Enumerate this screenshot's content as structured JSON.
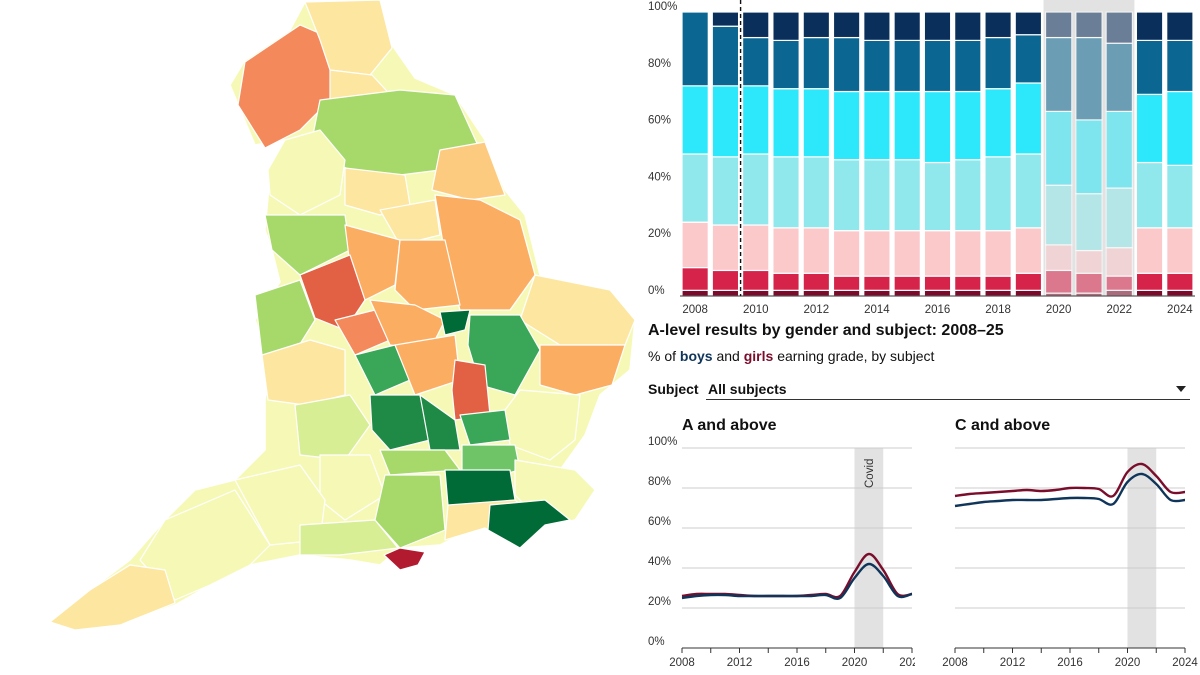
{
  "colors": {
    "boys": "#10355a",
    "girls": "#7a0d2c",
    "covid_shade": "#e2e2e2",
    "grid": "#cccccc",
    "grade_segments_bottom_to_top": [
      "#7d0a2a",
      "#d6234a",
      "#fcc9cb",
      "#90e8ec",
      "#2de8fb",
      "#0b6691",
      "#092f5a"
    ]
  },
  "map": {
    "scale": "green-yellow-red",
    "colors": [
      "#006b36",
      "#1e8a45",
      "#3aa657",
      "#6ec466",
      "#a6d96a",
      "#d8ee95",
      "#f6f9b6",
      "#fde6a0",
      "#fdcb80",
      "#fbad62",
      "#f4895c",
      "#e26043",
      "#b21a30"
    ]
  },
  "text": {
    "title": "A-level results by gender and subject: 2008–25",
    "subtitle_prefix": "% of ",
    "boys": "boys",
    "and": " and ",
    "girls": "girls",
    "subtitle_suffix": " earning grade, by subject",
    "subject_label": "Subject",
    "subject_value": "All subjects"
  },
  "chart_data": [
    {
      "type": "bar",
      "stacked": true,
      "categories": [
        "2008",
        "2009",
        "2010",
        "2011",
        "2012",
        "2013",
        "2014",
        "2015",
        "2016",
        "2017",
        "2018",
        "2019",
        "2020",
        "2021",
        "2022",
        "2023",
        "2024"
      ],
      "xticks": [
        "2008",
        "2010",
        "2012",
        "2014",
        "2016",
        "2018",
        "2020",
        "2022",
        "2024"
      ],
      "yticks": [
        "0%",
        "20%",
        "40%",
        "60%",
        "80%",
        "100%"
      ],
      "ylim": [
        0,
        100
      ],
      "grid": false,
      "dashed_marker_between": [
        "2009",
        "2010"
      ],
      "shaded_categories": [
        "2020",
        "2021",
        "2022"
      ],
      "shaded_faded": true,
      "segment_series": [
        {
          "values": [
            2,
            2,
            2,
            2,
            2,
            2,
            2,
            2,
            2,
            2,
            2,
            2,
            1,
            1,
            2,
            2,
            2
          ]
        },
        {
          "values": [
            8,
            7,
            7,
            6,
            6,
            5,
            5,
            5,
            5,
            5,
            5,
            6,
            8,
            7,
            5,
            6,
            6
          ]
        },
        {
          "values": [
            16,
            16,
            16,
            16,
            16,
            16,
            16,
            16,
            16,
            16,
            16,
            16,
            9,
            8,
            10,
            16,
            16
          ]
        },
        {
          "values": [
            24,
            24,
            25,
            25,
            25,
            25,
            25,
            25,
            24,
            25,
            26,
            26,
            21,
            20,
            21,
            23,
            22
          ]
        },
        {
          "values": [
            24,
            25,
            24,
            24,
            24,
            24,
            24,
            24,
            25,
            24,
            24,
            25,
            26,
            26,
            27,
            24,
            26
          ]
        },
        {
          "values": [
            26,
            21,
            17,
            17,
            18,
            19,
            18,
            18,
            18,
            18,
            18,
            17,
            26,
            29,
            24,
            19,
            18
          ]
        },
        {
          "values": [
            0,
            5,
            9,
            10,
            9,
            9,
            10,
            10,
            10,
            10,
            9,
            8,
            9,
            9,
            11,
            10,
            10
          ]
        }
      ]
    },
    {
      "type": "line",
      "title": "A and above",
      "x": [
        2008,
        2009,
        2010,
        2011,
        2012,
        2013,
        2014,
        2015,
        2016,
        2017,
        2018,
        2019,
        2020,
        2021,
        2022,
        2023,
        2024
      ],
      "xticks": [
        "2008",
        "2012",
        "2016",
        "2020",
        "2024"
      ],
      "yticks": [
        "0%",
        "20%",
        "40%",
        "60%",
        "80%",
        "100%"
      ],
      "ylim": [
        0,
        100
      ],
      "shaded_range": [
        2020,
        2022
      ],
      "annotation": "Covid",
      "series": [
        {
          "key": "girls",
          "values": [
            26,
            27,
            27,
            27,
            26.5,
            26,
            26,
            26,
            26,
            26.5,
            27,
            26,
            38,
            47,
            39,
            27,
            27
          ]
        },
        {
          "key": "boys",
          "values": [
            25,
            26,
            26.5,
            26.5,
            26,
            26,
            26,
            26,
            26,
            26,
            26.5,
            25,
            35,
            42,
            36,
            26,
            27
          ]
        }
      ]
    },
    {
      "type": "line",
      "title": "C and above",
      "x": [
        2008,
        2009,
        2010,
        2011,
        2012,
        2013,
        2014,
        2015,
        2016,
        2017,
        2018,
        2019,
        2020,
        2021,
        2022,
        2023,
        2024
      ],
      "xticks": [
        "2008",
        "2012",
        "2016",
        "2020",
        "2024"
      ],
      "yticks": [],
      "ylim": [
        0,
        100
      ],
      "shaded_range": [
        2020,
        2022
      ],
      "series": [
        {
          "key": "girls",
          "values": [
            76,
            77,
            77.5,
            78,
            78.5,
            79,
            78.5,
            79,
            80,
            80,
            79.5,
            76,
            88,
            92,
            86,
            78,
            78
          ]
        },
        {
          "key": "boys",
          "values": [
            71,
            72,
            73,
            73.5,
            74,
            74,
            74,
            74.5,
            75,
            75,
            74.5,
            72,
            83,
            87,
            82,
            74,
            74
          ]
        }
      ]
    }
  ]
}
